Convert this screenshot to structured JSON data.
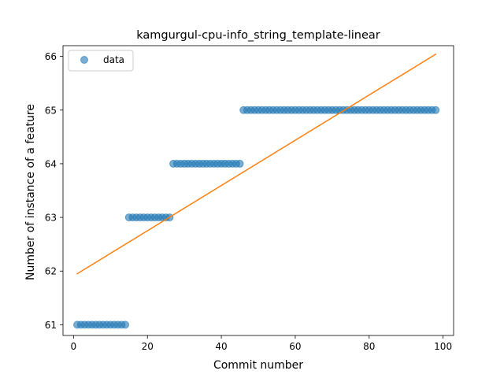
{
  "chart_data": {
    "type": "scatter",
    "title": "kamgurgul-cpu-info_string_template-linear",
    "xlabel": "Commit number",
    "ylabel": "Number of instance of a feature",
    "xlim": [
      -2.85,
      102.85
    ],
    "ylim": [
      60.8,
      66.2
    ],
    "xticks": [
      0,
      20,
      40,
      60,
      80,
      100
    ],
    "yticks": [
      61,
      62,
      63,
      64,
      65,
      66
    ],
    "grid": false,
    "legend_position": "upper left",
    "series": [
      {
        "name": "data",
        "kind": "scatter",
        "color": "#1f77b4",
        "x": [
          1,
          2,
          3,
          4,
          5,
          6,
          7,
          8,
          9,
          10,
          11,
          12,
          13,
          14,
          15,
          16,
          17,
          18,
          19,
          20,
          21,
          22,
          23,
          24,
          25,
          26,
          27,
          28,
          29,
          30,
          31,
          32,
          33,
          34,
          35,
          36,
          37,
          38,
          39,
          40,
          41,
          42,
          43,
          44,
          45,
          46,
          47,
          48,
          49,
          50,
          51,
          52,
          53,
          54,
          55,
          56,
          57,
          58,
          59,
          60,
          61,
          62,
          63,
          64,
          65,
          66,
          67,
          68,
          69,
          70,
          71,
          72,
          73,
          74,
          75,
          76,
          77,
          78,
          79,
          80,
          81,
          82,
          83,
          84,
          85,
          86,
          87,
          88,
          89,
          90,
          91,
          92,
          93,
          94,
          95,
          96,
          97,
          98
        ],
        "y": [
          61,
          61,
          61,
          61,
          61,
          61,
          61,
          61,
          61,
          61,
          61,
          61,
          61,
          61,
          63,
          63,
          63,
          63,
          63,
          63,
          63,
          63,
          63,
          63,
          63,
          63,
          64,
          64,
          64,
          64,
          64,
          64,
          64,
          64,
          64,
          64,
          64,
          64,
          64,
          64,
          64,
          64,
          64,
          64,
          64,
          65,
          65,
          65,
          65,
          65,
          65,
          65,
          65,
          65,
          65,
          65,
          65,
          65,
          65,
          65,
          65,
          65,
          65,
          65,
          65,
          65,
          65,
          65,
          65,
          65,
          65,
          65,
          65,
          65,
          65,
          65,
          65,
          65,
          65,
          65,
          65,
          65,
          65,
          65,
          65,
          65,
          65,
          65,
          65,
          65,
          65,
          65,
          65,
          65,
          65,
          65,
          65,
          65
        ]
      },
      {
        "kind": "line",
        "color": "#ff7f0e",
        "x": [
          1,
          98
        ],
        "y": [
          61.95,
          66.04
        ]
      }
    ]
  }
}
